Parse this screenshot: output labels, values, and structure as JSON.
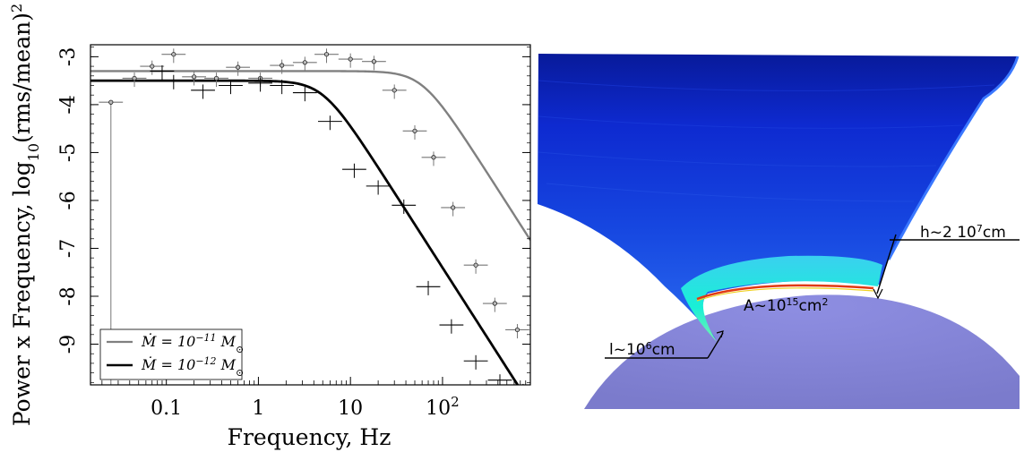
{
  "chart_data": {
    "type": "line",
    "xlabel": "Frequency, Hz",
    "ylabel": "Power x Frequency, log",
    "ylabel_sub": "10",
    "ylabel_rest": "(rms/mean)",
    "ylabel_sup": "2",
    "xscale": "log",
    "xlim": [
      0.015,
      900
    ],
    "ylim": [
      -9.85,
      -2.75
    ],
    "x_ticks": [
      {
        "value": 0.1,
        "label": "0.1"
      },
      {
        "value": 1,
        "label": "1"
      },
      {
        "value": 10,
        "label": "10"
      },
      {
        "value": 100,
        "label": "10",
        "sup": "2"
      }
    ],
    "y_ticks": [
      {
        "value": -3,
        "label": "-3"
      },
      {
        "value": -4,
        "label": "-4"
      },
      {
        "value": -5,
        "label": "-5"
      },
      {
        "value": -6,
        "label": "-6"
      },
      {
        "value": -7,
        "label": "-7"
      },
      {
        "value": -8,
        "label": "-8"
      },
      {
        "value": -9,
        "label": "-9"
      }
    ],
    "legend_position": "bottom-left",
    "series": [
      {
        "legend_html": "Ṁ = 10<tspan baseline-shift='super' font-size='11'>−11</tspan> M<tspan baseline-shift='sub' font-size='11'>⊙</tspan>",
        "color": "#808080",
        "model_level": -3.3,
        "model_break": 60,
        "points": [
          {
            "x": 0.025,
            "y": -3.95,
            "yerr_low": 6.0,
            "yerr_high": 0.0
          },
          {
            "x": 0.045,
            "y": -3.45
          },
          {
            "x": 0.07,
            "y": -3.2
          },
          {
            "x": 0.12,
            "y": -2.95
          },
          {
            "x": 0.2,
            "y": -3.42
          },
          {
            "x": 0.35,
            "y": -3.45
          },
          {
            "x": 0.6,
            "y": -3.22
          },
          {
            "x": 1.05,
            "y": -3.45
          },
          {
            "x": 1.8,
            "y": -3.18
          },
          {
            "x": 3.2,
            "y": -3.12
          },
          {
            "x": 5.5,
            "y": -2.95
          },
          {
            "x": 10,
            "y": -3.05
          },
          {
            "x": 18,
            "y": -3.1
          },
          {
            "x": 30,
            "y": -3.7
          },
          {
            "x": 50,
            "y": -4.55
          },
          {
            "x": 80,
            "y": -5.1
          },
          {
            "x": 130,
            "y": -6.15
          },
          {
            "x": 230,
            "y": -7.35
          },
          {
            "x": 370,
            "y": -8.15
          },
          {
            "x": 650,
            "y": -8.7
          }
        ]
      },
      {
        "legend_html": "Ṁ = 10<tspan baseline-shift='super' font-size='11'>−12</tspan> M<tspan baseline-shift='sub' font-size='11'>⊙</tspan>",
        "color": "#000000",
        "model_level": -3.5,
        "model_break": 5,
        "points": [
          {
            "x": 0.09,
            "y": -3.3
          },
          {
            "x": 0.12,
            "y": -3.5
          },
          {
            "x": 0.25,
            "y": -3.7
          },
          {
            "x": 0.5,
            "y": -3.6
          },
          {
            "x": 1.05,
            "y": -3.55
          },
          {
            "x": 1.8,
            "y": -3.6
          },
          {
            "x": 3.2,
            "y": -3.75
          },
          {
            "x": 6,
            "y": -4.35
          },
          {
            "x": 11,
            "y": -5.35
          },
          {
            "x": 20,
            "y": -5.7
          },
          {
            "x": 38,
            "y": -6.1
          },
          {
            "x": 70,
            "y": -7.8
          },
          {
            "x": 125,
            "y": -8.6
          },
          {
            "x": 230,
            "y": -9.35
          },
          {
            "x": 420,
            "y": -9.75
          },
          {
            "x": 750,
            "y": -9.95
          }
        ]
      }
    ]
  },
  "diagram": {
    "label_h": "h~2 10",
    "label_h_sup": "7",
    "label_h_unit": "cm",
    "label_A": "A~10",
    "label_A_sup": "15",
    "label_A_unit": "cm",
    "label_A_sup2": "2",
    "label_l": "l~10",
    "label_l_sup": "6",
    "label_l_unit": "cm",
    "colors": {
      "column_top": "#0b1fc7",
      "column_bottom": "#2a6bf0",
      "hotspot": "#19f0d6",
      "rim": "#e03a12",
      "star": "#8585d8"
    }
  }
}
